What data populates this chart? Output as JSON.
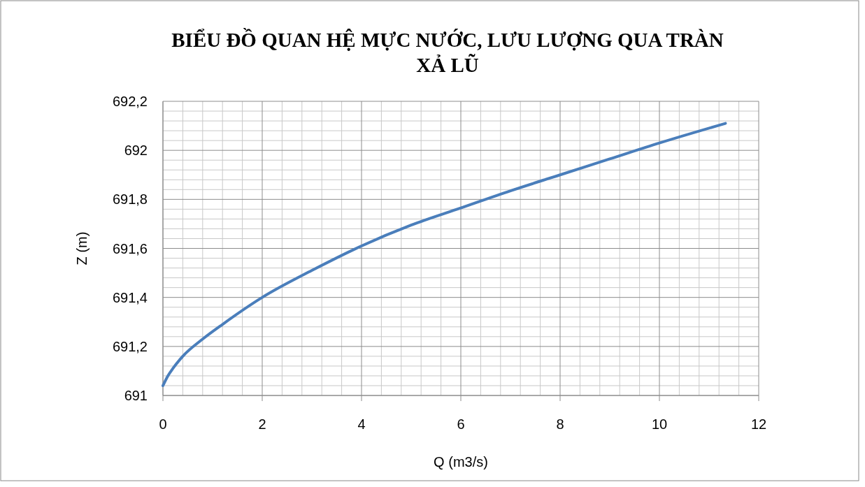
{
  "chart_data": {
    "type": "line",
    "title": "BIỂU ĐỒ QUAN HỆ MỰC NƯỚC, LƯU LƯỢNG QUA TRÀN XẢ LŨ",
    "xlabel": "Q (m3/s)",
    "ylabel": "Z (m)",
    "x": [
      0,
      0.1,
      0.2,
      0.4,
      0.8,
      1.2,
      2,
      3,
      4,
      5,
      6,
      7,
      8,
      9,
      10,
      11.33
    ],
    "series": [
      {
        "color": "#4a7ebb",
        "values": [
          691.04,
          691.08,
          691.11,
          691.16,
          691.23,
          691.29,
          691.4,
          691.51,
          691.61,
          691.695,
          691.765,
          691.835,
          691.9,
          691.965,
          692.03,
          692.11
        ]
      }
    ],
    "xlim": [
      0,
      12
    ],
    "xticks": [
      0,
      2,
      4,
      6,
      8,
      10,
      12
    ],
    "ylim": [
      691,
      692.2
    ],
    "yticks": [
      {
        "value": 691,
        "label": "691"
      },
      {
        "value": 691.2,
        "label": "691,2"
      },
      {
        "value": 691.4,
        "label": "691,4"
      },
      {
        "value": 691.6,
        "label": "691,6"
      },
      {
        "value": 691.8,
        "label": "691,8"
      },
      {
        "value": 692,
        "label": "692"
      },
      {
        "value": 692.2,
        "label": "692,2"
      }
    ],
    "grid": true,
    "marker": "none",
    "line_style": "solid"
  }
}
